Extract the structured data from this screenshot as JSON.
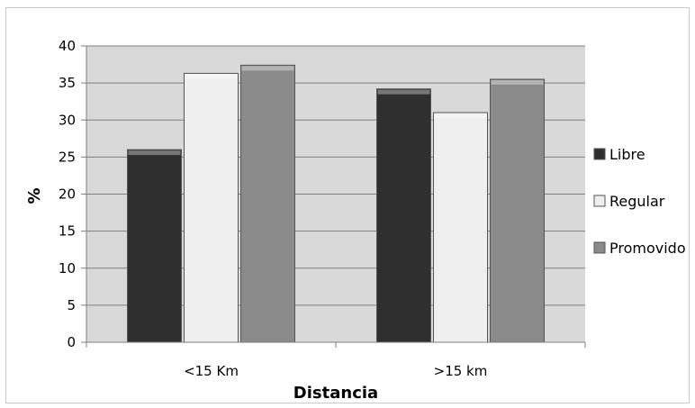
{
  "chart_data": {
    "type": "bar",
    "title": "",
    "xlabel": "Distancia",
    "ylabel": "%",
    "categories": [
      "<15 Km",
      ">15 km"
    ],
    "series": [
      {
        "name": "Libre",
        "values": [
          26,
          34.2
        ],
        "color": "#2f2f2f"
      },
      {
        "name": "Regular",
        "values": [
          36.3,
          31
        ],
        "color": "#efefef"
      },
      {
        "name": "Promovido",
        "values": [
          37.4,
          35.5
        ],
        "color": "#8a8a8a"
      }
    ],
    "ylim": [
      0,
      40
    ],
    "yticks": [
      "0",
      "5",
      "10",
      "15",
      "20",
      "25",
      "30",
      "35",
      "40"
    ],
    "grid": true,
    "legend": "right",
    "plot_background": "#d9d9d9"
  }
}
